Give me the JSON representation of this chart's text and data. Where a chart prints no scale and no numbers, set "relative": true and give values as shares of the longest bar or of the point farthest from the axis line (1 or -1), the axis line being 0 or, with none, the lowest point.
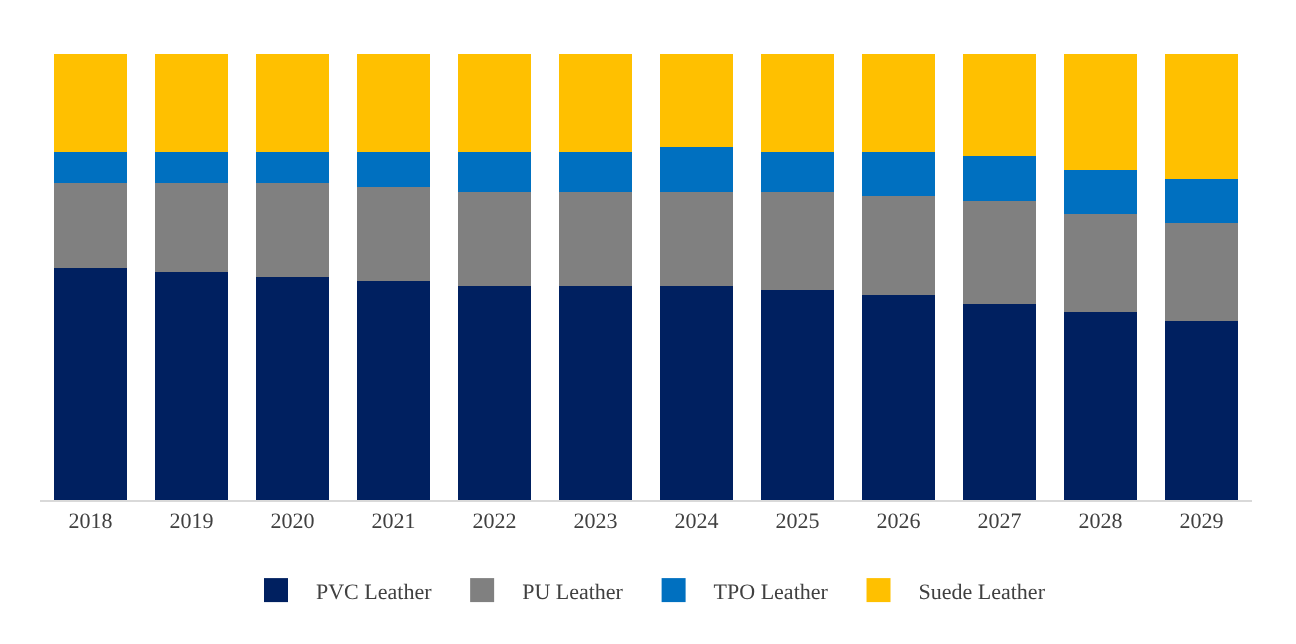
{
  "chart_data": {
    "type": "bar",
    "stacked": true,
    "relative": true,
    "legend": "bottom",
    "categories": [
      "2018",
      "2019",
      "2020",
      "2021",
      "2022",
      "2023",
      "2024",
      "2025",
      "2026",
      "2027",
      "2028",
      "2029"
    ],
    "series": [
      {
        "name": "PVC Leather",
        "color": "#002060",
        "values": [
          0.52,
          0.51,
          0.5,
          0.49,
          0.48,
          0.48,
          0.48,
          0.47,
          0.46,
          0.44,
          0.42,
          0.4
        ]
      },
      {
        "name": "PU Leather",
        "color": "#808080",
        "values": [
          0.19,
          0.2,
          0.21,
          0.21,
          0.21,
          0.21,
          0.21,
          0.22,
          0.22,
          0.23,
          0.22,
          0.22
        ]
      },
      {
        "name": "TPO Leather",
        "color": "#0070c0",
        "values": [
          0.07,
          0.07,
          0.07,
          0.08,
          0.09,
          0.09,
          0.1,
          0.09,
          0.1,
          0.1,
          0.1,
          0.1
        ]
      },
      {
        "name": "Suede Leather",
        "color": "#ffc000",
        "values": [
          0.22,
          0.22,
          0.22,
          0.22,
          0.22,
          0.22,
          0.21,
          0.22,
          0.22,
          0.23,
          0.26,
          0.28
        ]
      }
    ]
  }
}
